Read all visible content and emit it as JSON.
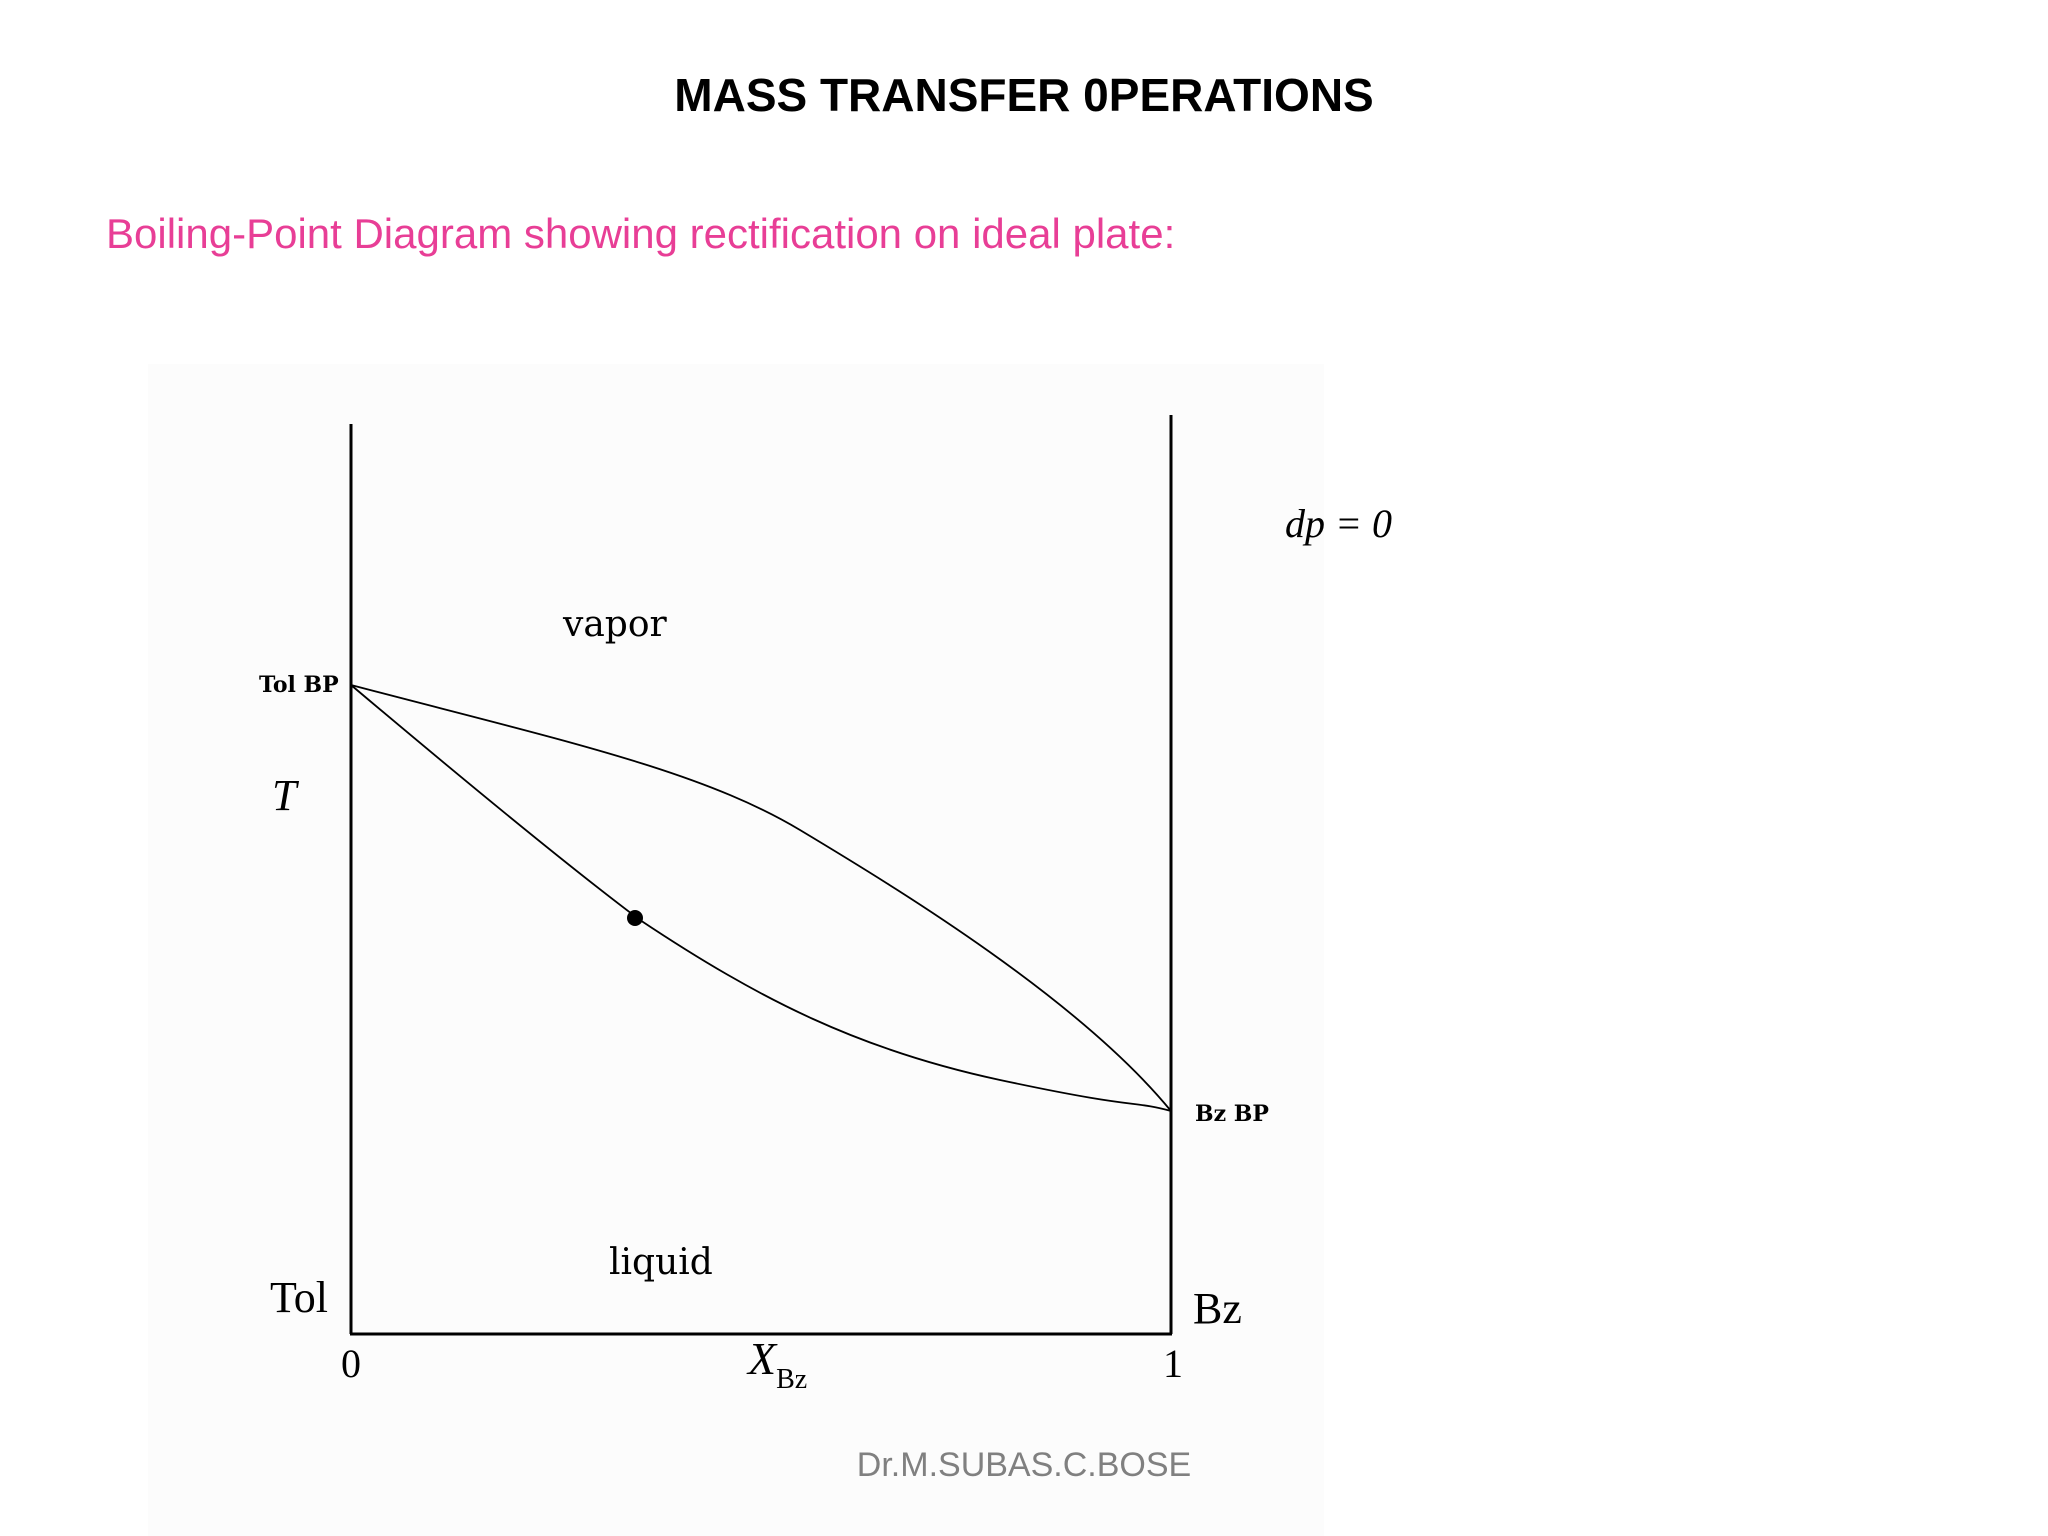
{
  "slide": {
    "title": "MASS TRANSFER 0PERATIONS",
    "subtitle": "Boiling-Point Diagram showing rectification on ideal plate:",
    "footer": "Dr.M.SUBAS.C.BOSE"
  },
  "diagram": {
    "condition": "dp = 0",
    "y_axis_symbol": "T",
    "x_axis_symbol": "X",
    "x_axis_subscript": "Bz",
    "x_tick_min": "0",
    "x_tick_max": "1",
    "left_component": "Tol",
    "right_component": "Bz",
    "left_bp_label": "Tol BP",
    "right_bp_label": "Bz BP",
    "region_upper": "vapor",
    "region_lower": "liquid"
  },
  "colors": {
    "subtitle": "#e83e96",
    "footer": "#808080",
    "figure_background": "#fcfcfc"
  }
}
